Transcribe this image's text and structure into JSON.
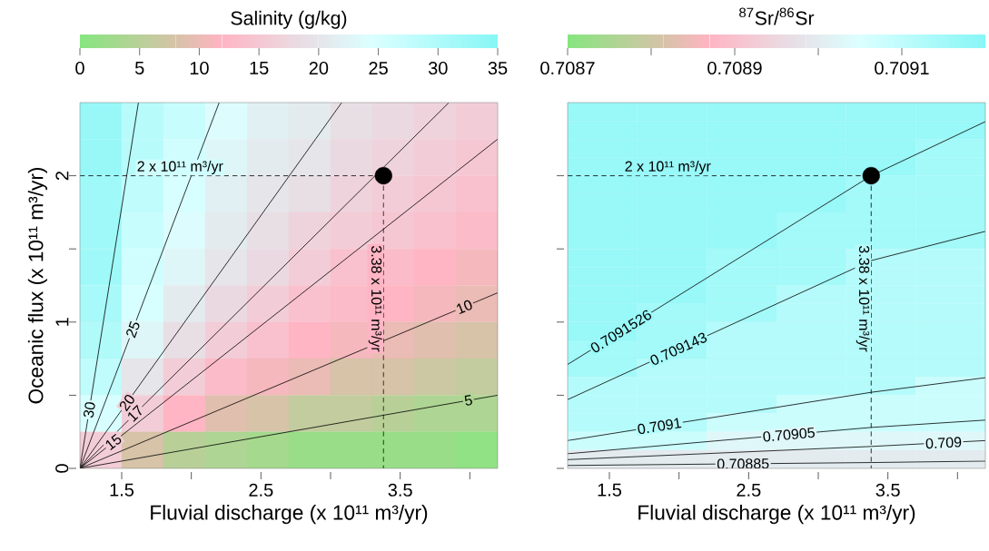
{
  "chart_data": [
    {
      "type": "heatmap",
      "clabel": "Salinity (g/kg)",
      "clim": [
        0,
        35
      ],
      "cticks": [
        0,
        5,
        10,
        15,
        20,
        25,
        30,
        35
      ],
      "tick_labels": false,
      "categories": [
        null,
        null,
        null,
        null,
        null,
        null,
        null,
        null,
        null,
        null
      ],
      "y_categories": [
        null,
        null,
        null,
        null,
        null,
        null,
        null,
        null,
        null,
        null
      ],
      "cells": [
        [
          33,
          29,
          27,
          24,
          22,
          21,
          19,
          18,
          17,
          16
        ],
        [
          33,
          29,
          26,
          23,
          21,
          20,
          18,
          17,
          16,
          15
        ],
        [
          32,
          28,
          25,
          22,
          20,
          19,
          17,
          16,
          15,
          14
        ],
        [
          32,
          27,
          24,
          21,
          19,
          17,
          16,
          15,
          14,
          13
        ],
        [
          32,
          26,
          23,
          20,
          18,
          16,
          14,
          13,
          12,
          11
        ],
        [
          31,
          25,
          21,
          18,
          16,
          14,
          13,
          12,
          11,
          10
        ],
        [
          30,
          23,
          19,
          16,
          14,
          12,
          11,
          10,
          9,
          8
        ],
        [
          28,
          20,
          16,
          13,
          11,
          10,
          8,
          8,
          7,
          6
        ],
        [
          25,
          16,
          12,
          9,
          8,
          6,
          6,
          5,
          4,
          4
        ],
        [
          16,
          8,
          5,
          4,
          3,
          2,
          2,
          2,
          2,
          1
        ]
      ]
    },
    {
      "type": "line",
      "xlabel": "Fluvial discharge (x 10¹¹ m³/yr)",
      "ylabel": "Oceanic flux (x 10¹¹ m³/yr)",
      "xlim": [
        1.2,
        4.2
      ],
      "ylim": [
        0,
        2.5
      ],
      "xticks": [
        1.5,
        {
          "value": 2,
          "label": null
        },
        2.5,
        {
          "value": 3,
          "label": null
        },
        3.5,
        {
          "value": 4,
          "label": null
        }
      ],
      "yticks": [
        0,
        {
          "value": 0.5,
          "label": null
        },
        1,
        {
          "value": 1.5,
          "label": null
        },
        2
      ],
      "series": [
        {
          "name": "5",
          "color": "#000000",
          "x": [
            1.2,
            4.2
          ],
          "values": [
            0,
            0.5
          ]
        },
        {
          "name": "10",
          "color": "#000000",
          "x": [
            1.2,
            4.2
          ],
          "values": [
            0,
            1.2
          ]
        },
        {
          "name": "15",
          "color": "#000000",
          "x": [
            1.2,
            4.2
          ],
          "values": [
            0,
            2.25
          ]
        },
        {
          "name": "17",
          "color": "#000000",
          "x": [
            1.2,
            3.85
          ],
          "values": [
            0,
            2.5
          ]
        },
        {
          "name": "20",
          "color": "#000000",
          "x": [
            1.2,
            3.08
          ],
          "values": [
            0,
            2.5
          ]
        },
        {
          "name": "25",
          "color": "#000000",
          "x": [
            1.2,
            2.2
          ],
          "values": [
            0,
            2.5
          ]
        },
        {
          "name": "30",
          "color": "#000000",
          "x": [
            1.2,
            1.62
          ],
          "values": [
            0,
            2.5
          ]
        },
        {
          "line_style": "dashed",
          "color": "#000000",
          "x": [
            1.2,
            3.38,
            3.38
          ],
          "values": [
            2,
            2,
            0
          ]
        },
        {
          "type": "scatter",
          "marker": "circle",
          "color": "#000000",
          "x": [
            3.38
          ],
          "values": [
            2
          ]
        }
      ],
      "annotations": [
        "2 x 10¹¹ m³/yr",
        "3.38 x 10¹¹ m³/yr"
      ]
    },
    {
      "type": "heatmap",
      "clabel": "$^{87}$Sr/$^{86}$Sr",
      "clim": [
        0.7087,
        0.7092
      ],
      "tick_labels": false,
      "cticks": [
        0.7087,
        {
          "value": 0.7088,
          "label": null
        },
        0.7089,
        {
          "value": 0.709,
          "label": null
        },
        0.7091
      ],
      "categories": [
        null,
        null,
        null,
        null,
        null,
        null
      ],
      "y_categories": [
        null,
        null,
        null,
        null,
        null,
        null,
        null,
        null,
        null,
        null,
        null,
        null,
        null,
        null,
        null,
        null,
        null,
        null,
        null,
        null
      ],
      "cells": [
        [
          0.70917,
          0.70917,
          0.70917,
          0.70917,
          0.70917,
          0.70917
        ],
        [
          0.70917,
          0.70917,
          0.70917,
          0.70917,
          0.70917,
          0.70917
        ],
        [
          0.70917,
          0.70917,
          0.70917,
          0.70917,
          0.70917,
          0.70915
        ],
        [
          0.70917,
          0.70917,
          0.70917,
          0.70917,
          0.70917,
          0.70915
        ],
        [
          0.70917,
          0.70917,
          0.70917,
          0.70917,
          0.70915,
          0.70915
        ],
        [
          0.70917,
          0.70917,
          0.70917,
          0.70917,
          0.70915,
          0.70915
        ],
        [
          0.70917,
          0.70917,
          0.70917,
          0.70915,
          0.70915,
          0.70915
        ],
        [
          0.70917,
          0.70917,
          0.70917,
          0.70915,
          0.70915,
          0.70915
        ],
        [
          0.70917,
          0.70917,
          0.70915,
          0.70915,
          0.70912,
          0.70912
        ],
        [
          0.70917,
          0.70917,
          0.70915,
          0.70915,
          0.70912,
          0.70912
        ],
        [
          0.70917,
          0.70917,
          0.70915,
          0.70912,
          0.70912,
          0.70912
        ],
        [
          0.70917,
          0.70915,
          0.70915,
          0.70912,
          0.70912,
          0.70912
        ],
        [
          0.70917,
          0.70915,
          0.70912,
          0.70912,
          0.70912,
          0.70912
        ],
        [
          0.70915,
          0.70915,
          0.70912,
          0.70912,
          0.70912,
          0.70912
        ],
        [
          0.70915,
          0.70912,
          0.70912,
          0.70912,
          0.70912,
          0.70912
        ],
        [
          0.70912,
          0.70912,
          0.70912,
          0.70912,
          0.70912,
          0.70908
        ],
        [
          0.70912,
          0.70912,
          0.70912,
          0.70908,
          0.70908,
          0.70908
        ],
        [
          0.70912,
          0.70912,
          0.70908,
          0.70908,
          0.70908,
          0.70908
        ],
        [
          0.70908,
          0.70908,
          0.70903,
          0.70903,
          0.70903,
          0.70903
        ],
        [
          0.709,
          0.709,
          0.709,
          0.709,
          0.709,
          0.709
        ]
      ]
    },
    {
      "type": "line",
      "xlabel": "Fluvial discharge (x 10¹¹ m³/yr)",
      "tick_labels": "x",
      "xlim": [
        1.2,
        4.2
      ],
      "ylim": [
        0,
        2.5
      ],
      "xticks": [
        1.5,
        {
          "value": 2,
          "label": null
        },
        2.5,
        {
          "value": 3,
          "label": null
        },
        3.5,
        {
          "value": 4,
          "label": null
        }
      ],
      "yticks": [
        0,
        0.5,
        1,
        1.5,
        2
      ],
      "series": [
        {
          "name": "0.7091526",
          "color": "#000000",
          "x": [
            1.2,
            3.38,
            4.2
          ],
          "values": [
            0.71,
            2,
            2.37
          ]
        },
        {
          "name": "0.709143",
          "color": "#000000",
          "x": [
            1.2,
            3.38,
            4.2
          ],
          "values": [
            0.47,
            1.42,
            1.62
          ]
        },
        {
          "name": "0.7091",
          "color": "#000000",
          "x": [
            1.2,
            3.38,
            4.2
          ],
          "values": [
            0.19,
            0.52,
            0.62
          ]
        },
        {
          "name": "0.70905",
          "color": "#000000",
          "x": [
            1.2,
            3.38,
            4.2
          ],
          "values": [
            0.1,
            0.28,
            0.33
          ]
        },
        {
          "name": "0.709",
          "color": "#000000",
          "x": [
            1.2,
            3.38,
            4.2
          ],
          "values": [
            0.06,
            0.15,
            0.19
          ]
        },
        {
          "name": "0.70885",
          "color": "#000000",
          "x": [
            1.2,
            3.38,
            4.2
          ],
          "values": [
            0.02,
            0.04,
            0.05
          ]
        },
        {
          "line_style": "dashed",
          "color": "#000000",
          "x": [
            1.2,
            3.38,
            3.38
          ],
          "values": [
            2,
            2,
            0
          ]
        },
        {
          "type": "scatter",
          "marker": "circle",
          "color": "#000000",
          "x": [
            3.38
          ],
          "values": [
            2
          ]
        }
      ],
      "annotations": [
        "2 x 10¹¹ m³/yr",
        "3.38 x 10¹¹ m³/yr"
      ]
    }
  ]
}
